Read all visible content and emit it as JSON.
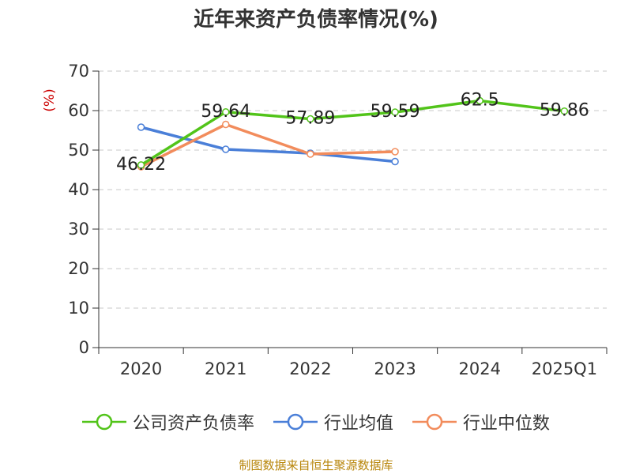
{
  "chart_data": {
    "type": "line",
    "title": "近年来资产负债率情况(%)",
    "ylabel": "(%)",
    "xlabel": "",
    "categories": [
      "2020",
      "2021",
      "2022",
      "2023",
      "2024",
      "2025Q1"
    ],
    "yticks": [
      "0",
      "10",
      "20",
      "30",
      "40",
      "50",
      "60",
      "70"
    ],
    "ylim": [
      0,
      70
    ],
    "grid": true,
    "legend_position": "bottom",
    "series": [
      {
        "name": "公司资产负债率",
        "color": "#52c41a",
        "values": [
          46.22,
          59.64,
          57.89,
          59.59,
          62.5,
          59.86
        ],
        "labels": [
          "46.22",
          "59.64",
          "57.89",
          "59.59",
          "62.5",
          "59.86"
        ]
      },
      {
        "name": "行业均值",
        "color": "#4a7fd8",
        "values": [
          55.8,
          50.2,
          49.2,
          47.1,
          null,
          null
        ]
      },
      {
        "name": "行业中位数",
        "color": "#f28c5c",
        "values": [
          45.8,
          56.5,
          49.0,
          49.6,
          null,
          null
        ]
      }
    ]
  },
  "footer": "制图数据来自恒生聚源数据库"
}
